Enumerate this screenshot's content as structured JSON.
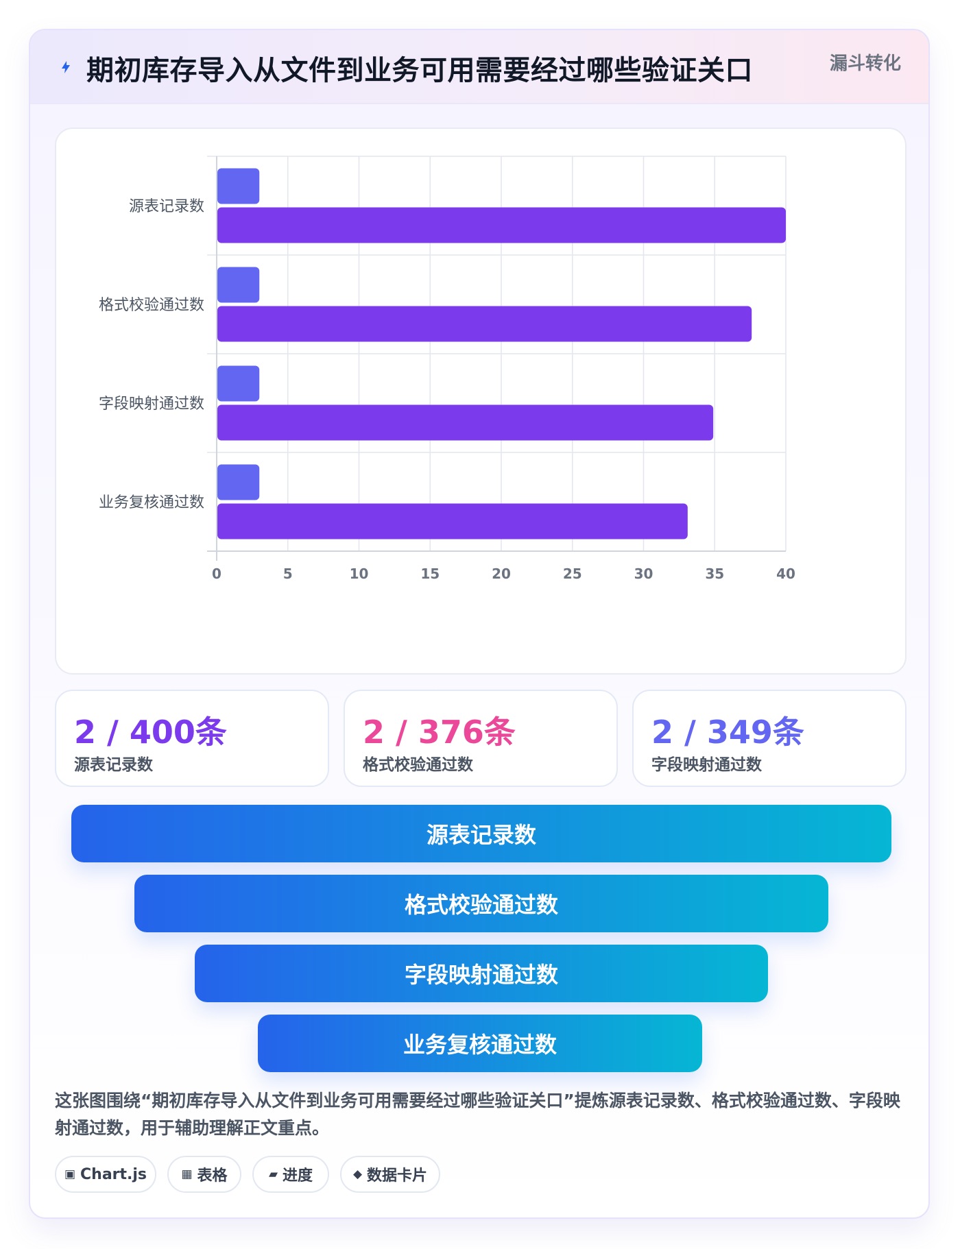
{
  "header": {
    "title": "期初库存导入从文件到业务可用需要经过哪些验证关口",
    "badge": "漏斗转化",
    "icon": "lightning-icon"
  },
  "chart_data": {
    "type": "bar",
    "orientation": "horizontal",
    "categories": [
      "源表记录数",
      "格式校验通过数",
      "字段映射通过数",
      "业务复核通过数"
    ],
    "series": [
      {
        "values": [
          3,
          3,
          3,
          3
        ],
        "color": "#6366f1"
      },
      {
        "values": [
          40,
          37.6,
          34.9,
          33.1
        ],
        "color": "#7c3aed"
      }
    ],
    "xlim": [
      0,
      40
    ],
    "xticks": [
      0,
      5,
      10,
      15,
      20,
      25,
      30,
      35,
      40
    ],
    "grid": true,
    "legend": "none"
  },
  "stats": [
    {
      "value": "2 / 400条",
      "label": "源表记录数",
      "color": "#7c3aed"
    },
    {
      "value": "2 / 376条",
      "label": "格式校验通过数",
      "color": "#ec4899"
    },
    {
      "value": "2 / 349条",
      "label": "字段映射通过数",
      "color": "#6366f1"
    }
  ],
  "funnel": [
    {
      "label": "源表记录数"
    },
    {
      "label": "格式校验通过数"
    },
    {
      "label": "字段映射通过数"
    },
    {
      "label": "业务复核通过数"
    }
  ],
  "description": "这张图围绕“期初库存导入从文件到业务可用需要经过哪些验证关口”提炼源表记录数、格式校验通过数、字段映射通过数，用于辅助理解正文重点。",
  "tags": [
    {
      "icon": "▣",
      "icon_name": "chart-icon",
      "label": "Chart.js"
    },
    {
      "icon": "▦",
      "icon_name": "table-icon",
      "label": "表格"
    },
    {
      "icon": "▰",
      "icon_name": "progress-icon",
      "label": "进度"
    },
    {
      "icon": "◆",
      "icon_name": "diamond-icon",
      "label": "数据卡片"
    }
  ]
}
